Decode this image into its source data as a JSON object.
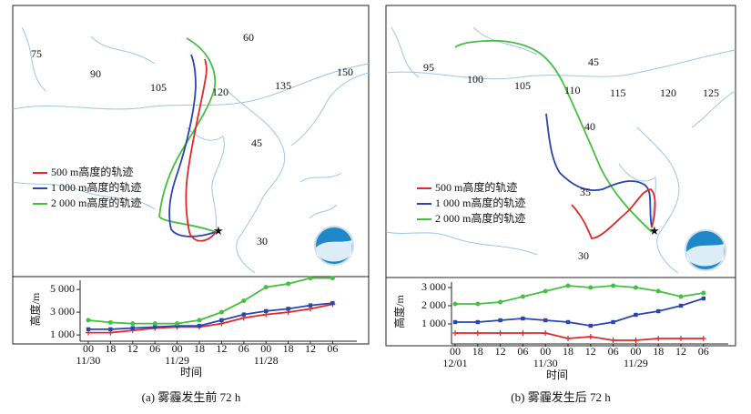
{
  "panels": [
    {
      "map_labels": [
        "75",
        "90",
        "105",
        "120",
        "60",
        "135",
        "150",
        "45",
        "30"
      ],
      "legend": [
        "500 m高度的轨迹",
        "1 000 m高度的轨迹",
        "2 000 m高度的轨迹"
      ],
      "caption": "(a) 雾霾发生前 72 h"
    },
    {
      "map_labels": [
        "95",
        "100",
        "105",
        "110",
        "45",
        "115",
        "120",
        "125",
        "40",
        "35",
        "30"
      ],
      "legend": [
        "500 m高度的轨迹",
        "1 000 m高度的轨迹",
        "2 000 m高度的轨迹"
      ],
      "caption": "(b) 雾霾发生后 72 h"
    }
  ],
  "chart_data": [
    {
      "type": "line",
      "y_label": "高度/m",
      "x_label": "时间",
      "categories": [
        "00",
        "18",
        "12",
        "06",
        "00",
        "18",
        "12",
        "06",
        "00",
        "18",
        "12",
        "06"
      ],
      "dates": [
        "11/30",
        "11/29",
        "11/28"
      ],
      "ylim": [
        450,
        6050
      ],
      "yticks": [
        {
          "value": 1000,
          "label": "1 000"
        },
        {
          "value": 3000,
          "label": "3 000"
        },
        {
          "value": 5000,
          "label": "5 000"
        }
      ],
      "series": [
        {
          "color": "#e02828",
          "values": [
            1200,
            1200,
            1400,
            1600,
            1700,
            1700,
            2000,
            2500,
            2800,
            3000,
            3300,
            3700
          ]
        },
        {
          "color": "#2a44b0",
          "values": [
            1500,
            1500,
            1600,
            1700,
            1800,
            1800,
            2300,
            2800,
            3100,
            3300,
            3600,
            3800
          ]
        },
        {
          "color": "#44c040",
          "values": [
            2300,
            2100,
            2000,
            2000,
            2000,
            2300,
            3000,
            4000,
            5200,
            5500,
            6000,
            6000
          ]
        }
      ]
    },
    {
      "type": "line",
      "y_label": "高度/m",
      "x_label": "时间",
      "categories": [
        "00",
        "18",
        "12",
        "06",
        "00",
        "18",
        "12",
        "06",
        "00",
        "18",
        "12",
        "06"
      ],
      "dates": [
        "12/01",
        "11/30",
        "11/29"
      ],
      "ylim": [
        -100,
        3450
      ],
      "yticks": [
        {
          "value": 1000,
          "label": "1 000"
        },
        {
          "value": 2000,
          "label": "2 000"
        },
        {
          "value": 3000,
          "label": "3 000"
        }
      ],
      "series": [
        {
          "color": "#e02828",
          "values": [
            500,
            500,
            500,
            500,
            500,
            200,
            300,
            100,
            100,
            200,
            200,
            200
          ]
        },
        {
          "color": "#2a44b0",
          "values": [
            1100,
            1100,
            1200,
            1300,
            1200,
            1100,
            900,
            1100,
            1500,
            1700,
            2000,
            2400
          ]
        },
        {
          "color": "#44c040",
          "values": [
            2100,
            2100,
            2200,
            2500,
            2800,
            3100,
            3000,
            3100,
            3000,
            2800,
            2500,
            2700
          ]
        }
      ]
    }
  ]
}
